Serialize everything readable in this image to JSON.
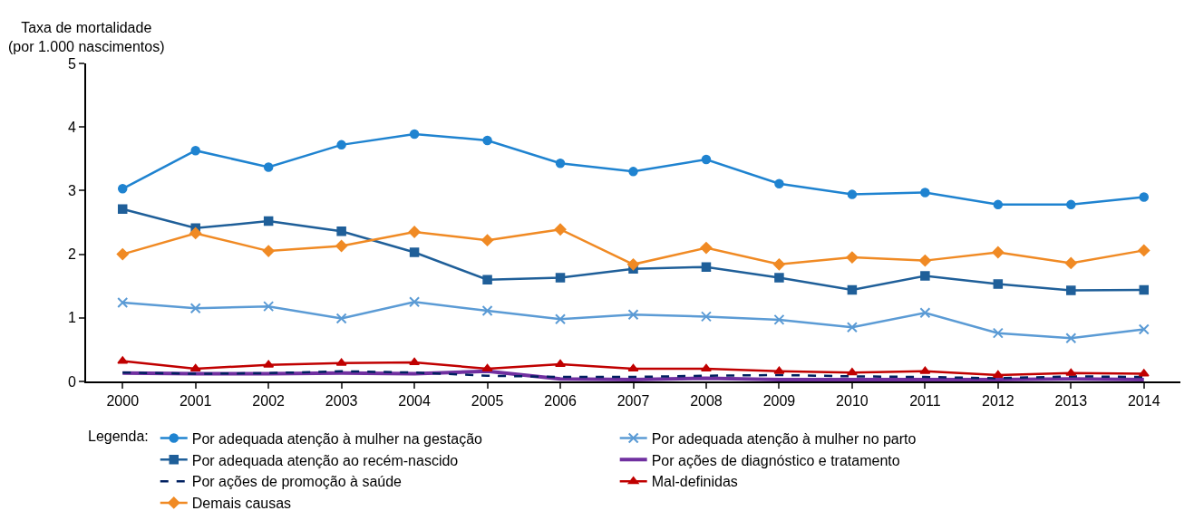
{
  "chart_data": {
    "type": "line",
    "ylabel": "Taxa de mortalidade\n(por 1.000 nascimentos)",
    "legend_title": "Legenda:",
    "categories": [
      "2000",
      "2001",
      "2002",
      "2003",
      "2004",
      "2005",
      "2006",
      "2007",
      "2008",
      "2009",
      "2010",
      "2011",
      "2012",
      "2013",
      "2014"
    ],
    "ylim": [
      0,
      5
    ],
    "yticks": [
      0,
      1,
      2,
      3,
      4,
      5
    ],
    "legend": "bottom",
    "line_style": "solid",
    "series": [
      {
        "name": "Por adequada atenção à mulher na gestação",
        "color": "#1f83d0",
        "marker": "circle",
        "values": [
          3.03,
          3.63,
          3.37,
          3.72,
          3.89,
          3.79,
          3.43,
          3.3,
          3.49,
          3.11,
          2.94,
          2.97,
          2.78,
          2.78,
          2.9
        ]
      },
      {
        "name": "Por adequada atenção à mulher no parto",
        "color": "#5b9bd5",
        "marker": "cross",
        "values": [
          1.24,
          1.15,
          1.18,
          0.99,
          1.25,
          1.11,
          0.98,
          1.05,
          1.02,
          0.97,
          0.85,
          1.08,
          0.76,
          0.68,
          0.82
        ]
      },
      {
        "name": "Por adequada atenção ao recém-nascido",
        "color": "#1f5f99",
        "marker": "square",
        "values": [
          2.71,
          2.41,
          2.52,
          2.36,
          2.03,
          1.6,
          1.63,
          1.77,
          1.8,
          1.63,
          1.44,
          1.66,
          1.53,
          1.43,
          1.44
        ]
      },
      {
        "name": "Por ações de diagnóstico e tratamento",
        "color": "#7030a0",
        "marker": "none",
        "values": [
          0.13,
          0.12,
          0.12,
          0.13,
          0.12,
          0.16,
          0.04,
          0.03,
          0.05,
          0.03,
          0.03,
          0.03,
          0.03,
          0.04,
          0.03
        ]
      },
      {
        "name": "Por ações de promoção à saúde",
        "color": "#002060",
        "marker": "none",
        "line_style": "dashed",
        "values": [
          0.14,
          0.12,
          0.13,
          0.16,
          0.14,
          0.09,
          0.07,
          0.07,
          0.09,
          0.1,
          0.08,
          0.07,
          0.05,
          0.08,
          0.07
        ]
      },
      {
        "name": "Mal-definidas",
        "color": "#c00000",
        "marker": "triangle",
        "values": [
          0.32,
          0.2,
          0.26,
          0.29,
          0.3,
          0.2,
          0.27,
          0.2,
          0.2,
          0.16,
          0.14,
          0.16,
          0.1,
          0.13,
          0.12
        ]
      },
      {
        "name": "Demais causas",
        "color": "#f08a24",
        "marker": "diamond",
        "values": [
          2.0,
          2.33,
          2.05,
          2.13,
          2.35,
          2.22,
          2.39,
          1.84,
          2.1,
          1.84,
          1.95,
          1.9,
          2.03,
          1.86,
          2.06
        ]
      }
    ]
  }
}
